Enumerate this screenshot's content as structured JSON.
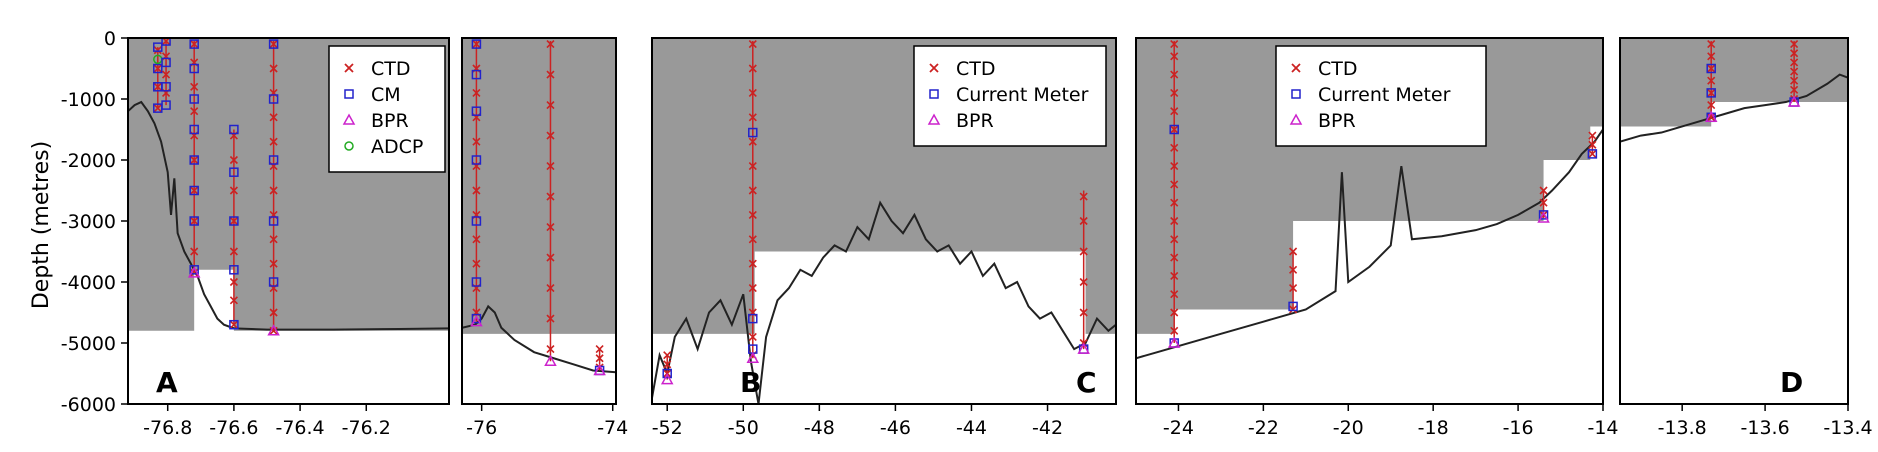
{
  "chart_data": {
    "type": "line",
    "ylabel": "Depth (metres)",
    "ylim": [
      -6000,
      0
    ],
    "y_ticks": [
      "0",
      "-1000",
      "-2000",
      "-3000",
      "-4000",
      "-5000",
      "-6000"
    ],
    "y_tick_values": [
      0,
      -1000,
      -2000,
      -3000,
      -4000,
      -5000,
      -6000
    ],
    "shading_color": "#999999",
    "instrument_colors": {
      "CTD": "#cc2222",
      "CM": "#2222cc",
      "BPR": "#cc22cc",
      "ADCP": "#22aa22"
    },
    "panels": [
      {
        "id": "p1",
        "letter": "A",
        "xlim": [
          -76.92,
          -75.95
        ],
        "x_ticks": [
          -76.8,
          -76.6,
          -76.4,
          -76.2
        ],
        "x_tick_labels": [
          "-76.8",
          "-76.6",
          "-76.4",
          "-76.2"
        ],
        "legend": [
          "CTD",
          "CM",
          "BPR",
          "ADCP"
        ],
        "shade": [
          [
            -76.92,
            -4800
          ],
          [
            -76.72,
            -4800
          ],
          [
            -76.72,
            -3800
          ],
          [
            -76.6,
            -3800
          ],
          [
            -76.6,
            -4800
          ],
          [
            -75.95,
            -4800
          ]
        ],
        "bathymetry": [
          [
            -76.92,
            -1200
          ],
          [
            -76.9,
            -1100
          ],
          [
            -76.88,
            -1050
          ],
          [
            -76.86,
            -1200
          ],
          [
            -76.84,
            -1400
          ],
          [
            -76.82,
            -1700
          ],
          [
            -76.8,
            -2200
          ],
          [
            -76.79,
            -2900
          ],
          [
            -76.78,
            -2300
          ],
          [
            -76.77,
            -3200
          ],
          [
            -76.75,
            -3500
          ],
          [
            -76.73,
            -3700
          ],
          [
            -76.71,
            -3900
          ],
          [
            -76.69,
            -4200
          ],
          [
            -76.67,
            -4400
          ],
          [
            -76.65,
            -4600
          ],
          [
            -76.63,
            -4700
          ],
          [
            -76.6,
            -4760
          ],
          [
            -76.5,
            -4780
          ],
          [
            -76.3,
            -4780
          ],
          [
            -76.1,
            -4770
          ],
          [
            -75.95,
            -4760
          ]
        ],
        "moorings": [
          {
            "lon": -76.83,
            "top": -150,
            "bottom": -1150,
            "ctd": [
              -200,
              -500,
              -800,
              -1150
            ],
            "cm": [
              -150,
              -500,
              -800,
              -1150
            ],
            "bpr": [],
            "adcp": [
              -350
            ]
          },
          {
            "lon": -76.805,
            "top": -50,
            "bottom": -1100,
            "ctd": [
              -50,
              -300,
              -600,
              -900
            ],
            "cm": [
              -50,
              -400,
              -800,
              -1100
            ],
            "bpr": [],
            "adcp": []
          },
          {
            "lon": -76.72,
            "top": -50,
            "bottom": -3850,
            "ctd": [
              -100,
              -400,
              -800,
              -1200,
              -1600,
              -2000,
              -2500,
              -3000,
              -3500,
              -3850
            ],
            "cm": [
              -100,
              -500,
              -1000,
              -1500,
              -2000,
              -2500,
              -3000,
              -3800
            ],
            "bpr": [
              -3850
            ],
            "adcp": []
          },
          {
            "lon": -76.6,
            "top": -1500,
            "bottom": -4700,
            "ctd": [
              -1600,
              -2000,
              -2500,
              -3000,
              -3500,
              -4000,
              -4300,
              -4700
            ],
            "cm": [
              -1500,
              -2200,
              -3000,
              -3800,
              -4700
            ],
            "bpr": [],
            "adcp": []
          },
          {
            "lon": -76.48,
            "top": -50,
            "bottom": -4800,
            "ctd": [
              -100,
              -500,
              -900,
              -1300,
              -1700,
              -2100,
              -2500,
              -2900,
              -3300,
              -3700,
              -4100,
              -4500,
              -4800
            ],
            "cm": [
              -100,
              -1000,
              -2000,
              -3000,
              -4000
            ],
            "bpr": [
              -4800
            ],
            "adcp": []
          }
        ]
      },
      {
        "id": "p2",
        "letter": "",
        "xlim": [
          -76.3,
          -73.95
        ],
        "x_ticks": [
          -76,
          -74
        ],
        "x_tick_labels": [
          "-76",
          "-74"
        ],
        "legend": [],
        "shade": [
          [
            -76.3,
            -4850
          ],
          [
            -73.95,
            -4850
          ]
        ],
        "bathymetry": [
          [
            -76.3,
            -4750
          ],
          [
            -76.1,
            -4700
          ],
          [
            -76.0,
            -4600
          ],
          [
            -75.9,
            -4400
          ],
          [
            -75.8,
            -4500
          ],
          [
            -75.7,
            -4750
          ],
          [
            -75.5,
            -4950
          ],
          [
            -75.2,
            -5150
          ],
          [
            -74.9,
            -5250
          ],
          [
            -74.6,
            -5350
          ],
          [
            -74.3,
            -5450
          ],
          [
            -73.95,
            -5480
          ]
        ],
        "moorings": [
          {
            "lon": -76.08,
            "top": -50,
            "bottom": -4650,
            "ctd": [
              -100,
              -500,
              -900,
              -1300,
              -1700,
              -2100,
              -2500,
              -2900,
              -3300,
              -3700,
              -4100,
              -4500
            ],
            "cm": [
              -100,
              -600,
              -1200,
              -2000,
              -3000,
              -4000,
              -4600
            ],
            "bpr": [
              -4650
            ],
            "adcp": []
          },
          {
            "lon": -74.95,
            "top": -50,
            "bottom": -5300,
            "ctd": [
              -100,
              -600,
              -1100,
              -1600,
              -2100,
              -2600,
              -3100,
              -3600,
              -4100,
              -4600,
              -5100
            ],
            "cm": [],
            "bpr": [
              -5300
            ],
            "adcp": []
          },
          {
            "lon": -74.2,
            "top": -5100,
            "bottom": -5450,
            "ctd": [
              -5100,
              -5250,
              -5400
            ],
            "cm": [
              -5450
            ],
            "bpr": [
              -5450
            ],
            "adcp": []
          }
        ]
      },
      {
        "id": "p3",
        "letter": "B",
        "letter2": "C",
        "xlim": [
          -52.4,
          -40.2
        ],
        "x_ticks": [
          -52,
          -50,
          -48,
          -46,
          -44,
          -42
        ],
        "x_tick_labels": [
          "-52",
          "-50",
          "-48",
          "-46",
          "-44",
          "-42"
        ],
        "legend": [
          "CTD",
          "Current Meter",
          "BPR"
        ],
        "shade": [
          [
            -52.4,
            -4850
          ],
          [
            -49.7,
            -4850
          ],
          [
            -49.7,
            -3500
          ],
          [
            -41.0,
            -3500
          ],
          [
            -41.0,
            -4850
          ],
          [
            -40.2,
            -4850
          ]
        ],
        "bathymetry": [
          [
            -52.4,
            -5900
          ],
          [
            -52.2,
            -5200
          ],
          [
            -52.0,
            -5500
          ],
          [
            -51.8,
            -4900
          ],
          [
            -51.5,
            -4600
          ],
          [
            -51.2,
            -5100
          ],
          [
            -50.9,
            -4500
          ],
          [
            -50.6,
            -4300
          ],
          [
            -50.3,
            -4700
          ],
          [
            -50.0,
            -4200
          ],
          [
            -49.8,
            -5300
          ],
          [
            -49.6,
            -6000
          ],
          [
            -49.4,
            -4900
          ],
          [
            -49.1,
            -4300
          ],
          [
            -48.8,
            -4100
          ],
          [
            -48.5,
            -3800
          ],
          [
            -48.2,
            -3900
          ],
          [
            -47.9,
            -3600
          ],
          [
            -47.6,
            -3400
          ],
          [
            -47.3,
            -3500
          ],
          [
            -47.0,
            -3100
          ],
          [
            -46.7,
            -3300
          ],
          [
            -46.4,
            -2700
          ],
          [
            -46.1,
            -3000
          ],
          [
            -45.8,
            -3200
          ],
          [
            -45.5,
            -2900
          ],
          [
            -45.2,
            -3300
          ],
          [
            -44.9,
            -3500
          ],
          [
            -44.6,
            -3400
          ],
          [
            -44.3,
            -3700
          ],
          [
            -44.0,
            -3500
          ],
          [
            -43.7,
            -3900
          ],
          [
            -43.4,
            -3700
          ],
          [
            -43.1,
            -4100
          ],
          [
            -42.8,
            -4000
          ],
          [
            -42.5,
            -4400
          ],
          [
            -42.2,
            -4600
          ],
          [
            -41.9,
            -4500
          ],
          [
            -41.6,
            -4800
          ],
          [
            -41.3,
            -5100
          ],
          [
            -41.0,
            -5000
          ],
          [
            -40.7,
            -4600
          ],
          [
            -40.4,
            -4800
          ],
          [
            -40.2,
            -4700
          ]
        ],
        "moorings": [
          {
            "lon": -52.0,
            "top": -5200,
            "bottom": -5600,
            "ctd": [
              -5200,
              -5350,
              -5500
            ],
            "cm": [
              -5500
            ],
            "bpr": [
              -5600
            ],
            "adcp": []
          },
          {
            "lon": -49.75,
            "top": -50,
            "bottom": -5250,
            "ctd": [
              -100,
              -500,
              -900,
              -1300,
              -1700,
              -2100,
              -2500,
              -2900,
              -3300,
              -3700,
              -4100,
              -4500,
              -4900,
              -5200
            ],
            "cm": [
              -1550,
              -4600,
              -5100
            ],
            "bpr": [
              -5250
            ],
            "adcp": []
          },
          {
            "lon": -41.05,
            "top": -2500,
            "bottom": -5100,
            "ctd": [
              -2600,
              -3000,
              -3500,
              -4000,
              -4500,
              -5000
            ],
            "cm": [
              -5100
            ],
            "bpr": [
              -5100
            ],
            "adcp": []
          }
        ]
      },
      {
        "id": "p4",
        "letter": "",
        "xlim": [
          -25.0,
          -14.0
        ],
        "x_ticks": [
          -24,
          -22,
          -20,
          -18,
          -16,
          -14
        ],
        "x_tick_labels": [
          "-24",
          "-22",
          "-20",
          "-18",
          "-16",
          "-14"
        ],
        "legend": [
          "CTD",
          "Current Meter",
          "BPR"
        ],
        "shade": [
          [
            -25.0,
            -4850
          ],
          [
            -24.1,
            -4850
          ],
          [
            -24.1,
            -4450
          ],
          [
            -21.3,
            -4450
          ],
          [
            -21.3,
            -3000
          ],
          [
            -15.4,
            -3000
          ],
          [
            -15.4,
            -2000
          ],
          [
            -14.3,
            -2000
          ],
          [
            -14.3,
            -1450
          ],
          [
            -14.0,
            -1450
          ]
        ],
        "bathymetry": [
          [
            -25.0,
            -5250
          ],
          [
            -24.5,
            -5150
          ],
          [
            -24.0,
            -5050
          ],
          [
            -23.0,
            -4850
          ],
          [
            -22.0,
            -4650
          ],
          [
            -21.0,
            -4450
          ],
          [
            -20.3,
            -4150
          ],
          [
            -20.15,
            -2200
          ],
          [
            -20.0,
            -4000
          ],
          [
            -19.5,
            -3750
          ],
          [
            -19.0,
            -3400
          ],
          [
            -18.75,
            -2100
          ],
          [
            -18.5,
            -3300
          ],
          [
            -17.8,
            -3250
          ],
          [
            -17.0,
            -3150
          ],
          [
            -16.5,
            -3050
          ],
          [
            -16.0,
            -2900
          ],
          [
            -15.5,
            -2700
          ],
          [
            -15.2,
            -2500
          ],
          [
            -14.8,
            -2200
          ],
          [
            -14.5,
            -1900
          ],
          [
            -14.2,
            -1700
          ],
          [
            -14.0,
            -1500
          ]
        ],
        "moorings": [
          {
            "lon": -24.1,
            "top": -50,
            "bottom": -5000,
            "ctd": [
              -100,
              -300,
              -600,
              -900,
              -1200,
              -1500,
              -1800,
              -2100,
              -2400,
              -2700,
              -3000,
              -3300,
              -3600,
              -3900,
              -4200,
              -4500,
              -4800
            ],
            "cm": [
              -1500,
              -5000
            ],
            "bpr": [
              -5000
            ],
            "adcp": []
          },
          {
            "lon": -21.3,
            "top": -3500,
            "bottom": -4450,
            "ctd": [
              -3500,
              -3800,
              -4100,
              -4450
            ],
            "cm": [
              -4400
            ],
            "bpr": [],
            "adcp": []
          },
          {
            "lon": -15.4,
            "top": -2500,
            "bottom": -2950,
            "ctd": [
              -2500,
              -2700,
              -2900
            ],
            "cm": [
              -2900
            ],
            "bpr": [
              -2950
            ],
            "adcp": []
          },
          {
            "lon": -14.25,
            "top": -1600,
            "bottom": -1900,
            "ctd": [
              -1600,
              -1750,
              -1900
            ],
            "cm": [
              -1900
            ],
            "bpr": [],
            "adcp": []
          }
        ]
      },
      {
        "id": "p5",
        "letter": "D",
        "xlim": [
          -13.95,
          -13.4
        ],
        "x_ticks": [
          -13.8,
          -13.6,
          -13.4
        ],
        "x_tick_labels": [
          "-13.8",
          "-13.6",
          "-13.4"
        ],
        "legend": [],
        "shade": [
          [
            -13.95,
            -1450
          ],
          [
            -13.73,
            -1450
          ],
          [
            -13.73,
            -1050
          ],
          [
            -13.4,
            -1050
          ]
        ],
        "bathymetry": [
          [
            -13.95,
            -1700
          ],
          [
            -13.9,
            -1600
          ],
          [
            -13.85,
            -1550
          ],
          [
            -13.8,
            -1450
          ],
          [
            -13.75,
            -1350
          ],
          [
            -13.7,
            -1250
          ],
          [
            -13.65,
            -1150
          ],
          [
            -13.6,
            -1100
          ],
          [
            -13.55,
            -1050
          ],
          [
            -13.5,
            -950
          ],
          [
            -13.45,
            -750
          ],
          [
            -13.42,
            -600
          ],
          [
            -13.4,
            -650
          ]
        ],
        "moorings": [
          {
            "lon": -13.73,
            "top": -50,
            "bottom": -1300,
            "ctd": [
              -100,
              -300,
              -500,
              -700,
              -900,
              -1100,
              -1300
            ],
            "cm": [
              -500,
              -900,
              -1300
            ],
            "bpr": [
              -1300
            ],
            "adcp": []
          },
          {
            "lon": -13.53,
            "top": -50,
            "bottom": -1050,
            "ctd": [
              -100,
              -250,
              -400,
              -550,
              -700,
              -850,
              -1000
            ],
            "cm": [
              -1050
            ],
            "bpr": [
              -1050
            ],
            "adcp": []
          }
        ]
      }
    ]
  }
}
